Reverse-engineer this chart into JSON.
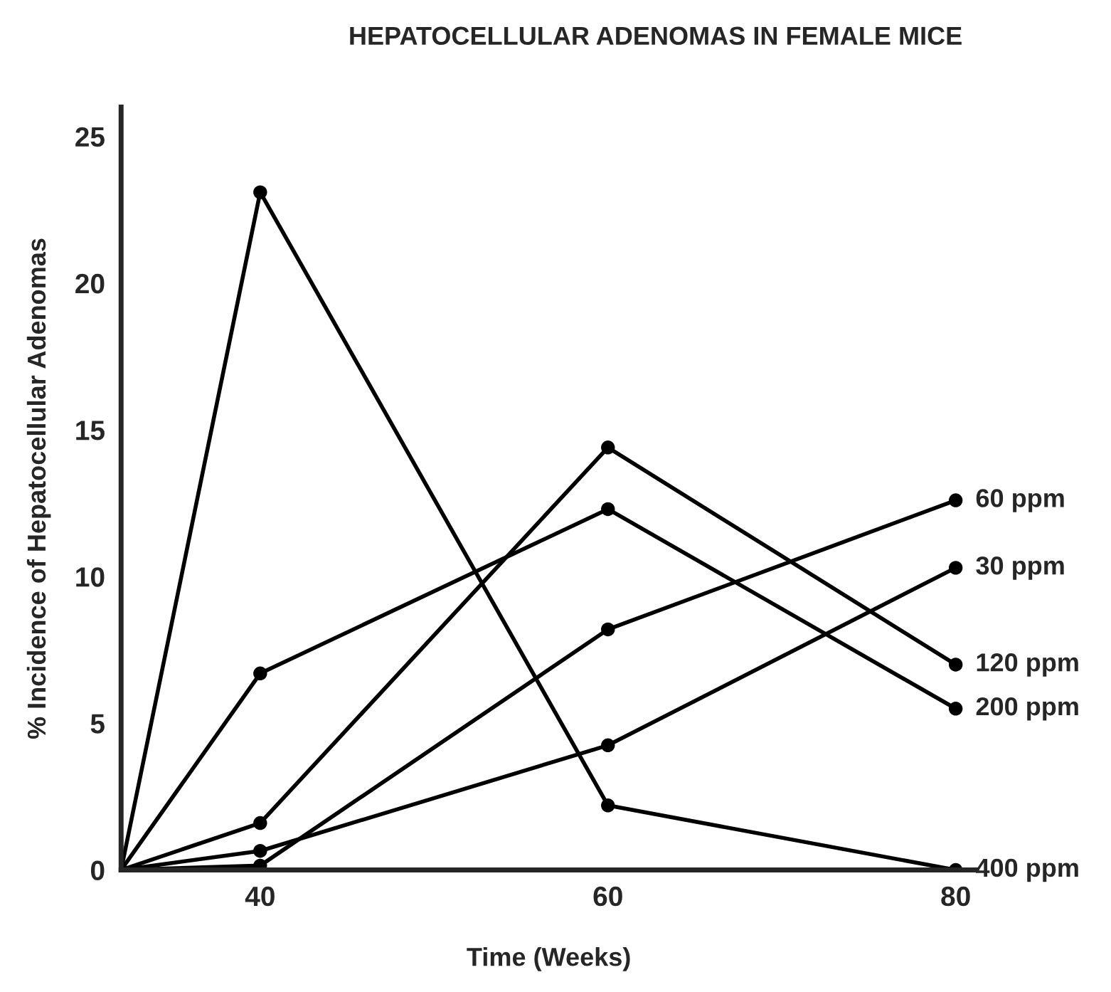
{
  "chart_data": {
    "type": "line",
    "title": "HEPATOCELLULAR ADENOMAS IN FEMALE MICE",
    "xlabel": "Time (Weeks)",
    "ylabel": "% Incidence of Hepatocellular Adenomas",
    "x": [
      32,
      40,
      60,
      80
    ],
    "series": [
      {
        "name": "60 ppm",
        "color": "#000000",
        "values": [
          0,
          0.15,
          8.2,
          12.6
        ]
      },
      {
        "name": "30 ppm",
        "color": "#000000",
        "values": [
          0,
          0.65,
          4.25,
          10.3
        ]
      },
      {
        "name": "120 ppm",
        "color": "#000000",
        "values": [
          0,
          1.6,
          14.4,
          7.0
        ]
      },
      {
        "name": "200 ppm",
        "color": "#000000",
        "values": [
          0,
          6.7,
          12.3,
          5.5
        ]
      },
      {
        "name": "400 ppm",
        "color": "#000000",
        "values": [
          0,
          23.1,
          2.2,
          0
        ]
      }
    ],
    "xlim": [
      32,
      81.2
    ],
    "xticks": [
      40,
      60,
      80
    ],
    "ylim": [
      0,
      26
    ],
    "yticks": [
      0,
      5,
      10,
      15,
      20,
      25
    ],
    "marker": "circle",
    "line_style": "solid",
    "grid": false,
    "legend": false
  }
}
